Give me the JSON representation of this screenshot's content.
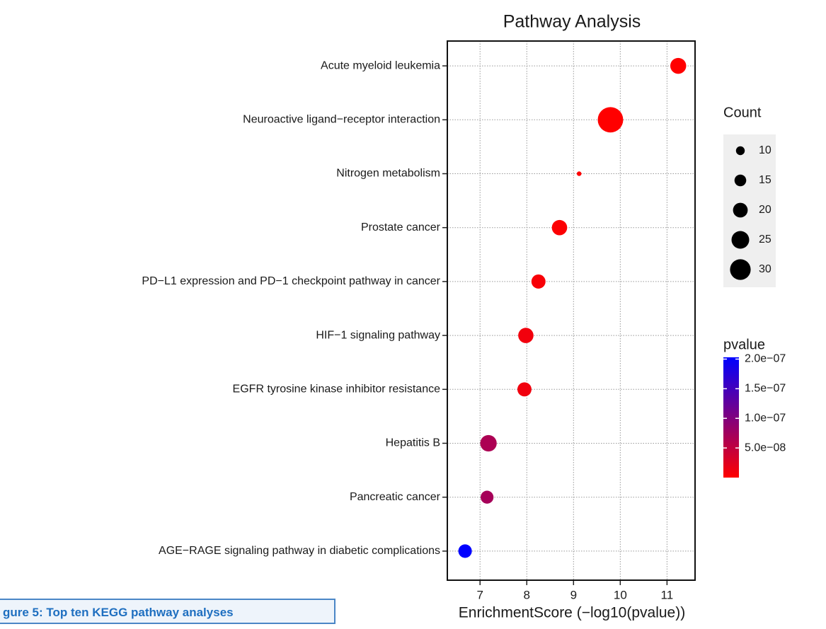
{
  "chart_data": {
    "type": "scatter",
    "title": "Pathway Analysis",
    "x_label": "EnrichmentScore (−log10(pvalue))",
    "categories": [
      "Acute myeloid leukemia",
      "Neuroactive ligand−receptor interaction",
      "Nitrogen metabolism",
      "Prostate cancer",
      "PD−L1 expression and PD−1 checkpoint pathway in cancer",
      "HIF−1 signaling pathway",
      "EGFR tyrosine kinase inhibitor resistance",
      "Hepatitis B",
      "Pancreatic cancer",
      "AGE−RAGE signaling pathway in diabetic complications"
    ],
    "values": [
      11.24,
      9.79,
      9.12,
      8.7,
      8.25,
      7.98,
      7.95,
      7.18,
      7.15,
      6.68
    ],
    "sizes": [
      22,
      38,
      3,
      21,
      19,
      21,
      19,
      23,
      17,
      18
    ],
    "pvalues": [
      5.8e-12,
      1.6e-10,
      7.6e-10,
      2e-09,
      5.6e-09,
      1.05e-08,
      1.1e-08,
      6.6e-08,
      7.1e-08,
      2.1e-07
    ],
    "xlim": [
      6.3,
      11.6
    ],
    "xticks": [
      7,
      8,
      9,
      10,
      11
    ],
    "grid": true,
    "size_legend": {
      "title": "Count",
      "values": [
        10,
        15,
        20,
        25,
        30
      ]
    },
    "color_legend": {
      "title": "pvalue",
      "low_color": "#ff0000",
      "high_color": "#0000ff",
      "clim": [
        0,
        2.03e-07
      ],
      "ticks": [
        {
          "value": 2e-07,
          "label": "2.0e−07"
        },
        {
          "value": 1.5e-07,
          "label": "1.5e−07"
        },
        {
          "value": 1e-07,
          "label": "1.0e−07"
        },
        {
          "value": 5e-08,
          "label": "5.0e−08"
        }
      ]
    }
  },
  "caption": "gure 5: Top ten KEGG pathway analyses"
}
